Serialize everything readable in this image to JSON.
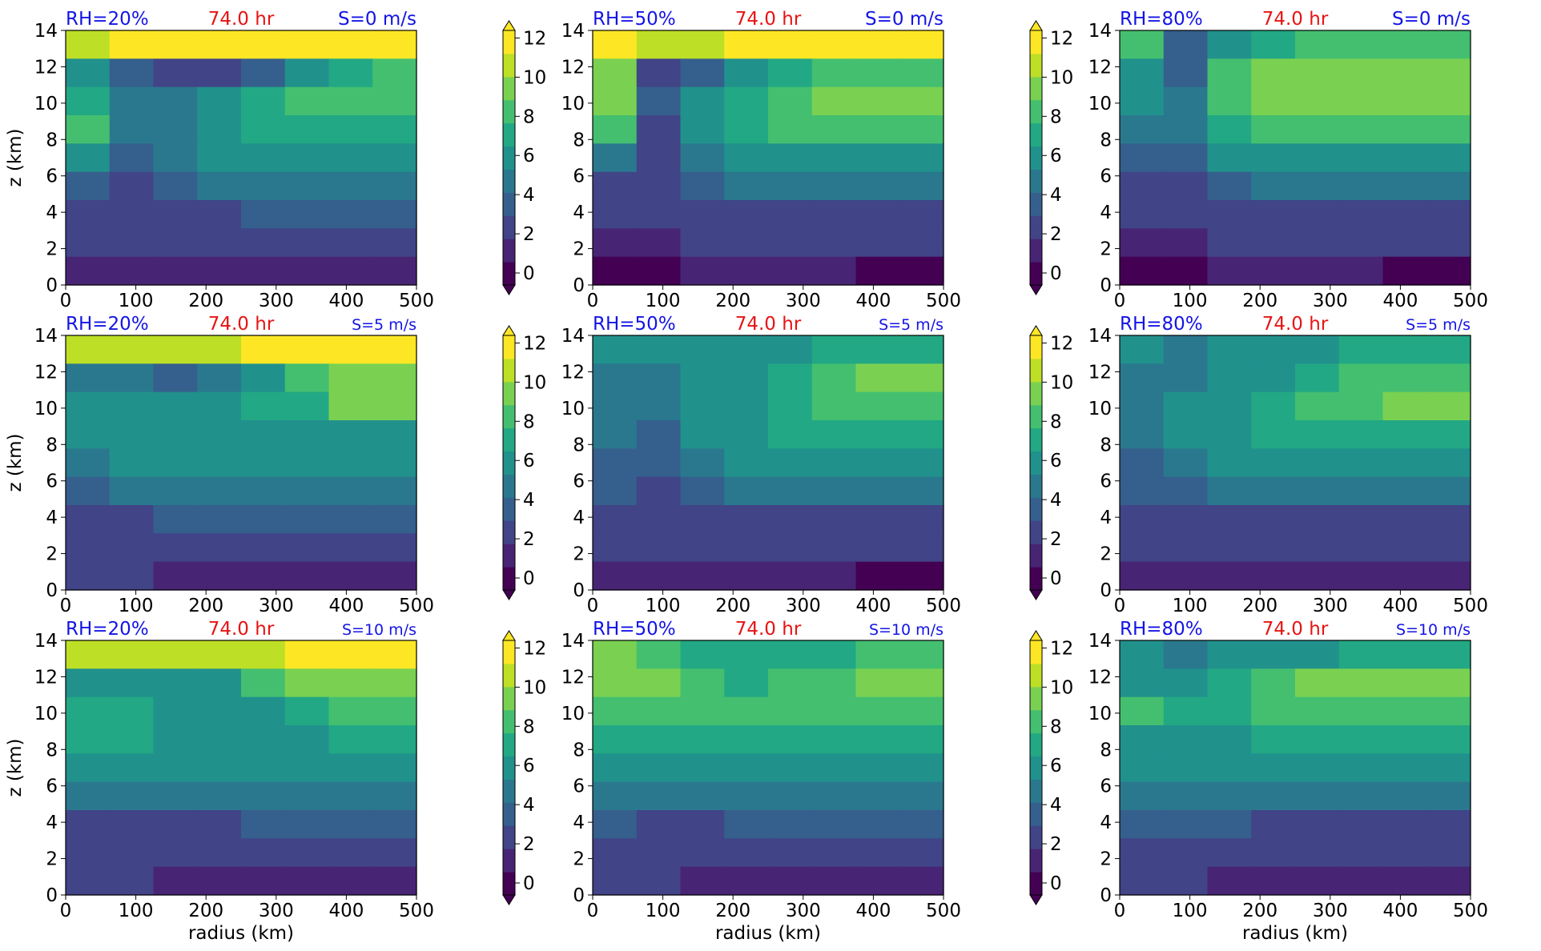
{
  "figure": {
    "xlabel": "radius (km)",
    "ylabel": "z (km)",
    "x_ticks": [
      "0",
      "100",
      "200",
      "300",
      "400",
      "500"
    ],
    "y_ticks": [
      "0",
      "2",
      "4",
      "6",
      "8",
      "10",
      "12",
      "14"
    ],
    "colorbar_ticks": [
      "0",
      "2",
      "4",
      "6",
      "8",
      "10",
      "12"
    ]
  },
  "chart_data": [
    {
      "type": "heatmap",
      "panel": "RH=20% S=0",
      "rh_label": "RH=20%",
      "time_label": "74.0 hr",
      "shear_label": "S=0 m/s",
      "xlim": [
        0,
        500
      ],
      "ylim": [
        0,
        14
      ],
      "clim": [
        0,
        13
      ],
      "values": [
        [
          12,
          13,
          13,
          13,
          13,
          13,
          13,
          13
        ],
        [
          6,
          4,
          3,
          3,
          4,
          6,
          8,
          9
        ],
        [
          8,
          5,
          5,
          7,
          8,
          9,
          9,
          9
        ],
        [
          9,
          5,
          5,
          7,
          8,
          8,
          8,
          8
        ],
        [
          6,
          4,
          5,
          6,
          6,
          7,
          7,
          7
        ],
        [
          4,
          3,
          4,
          5,
          5,
          5,
          5,
          5
        ],
        [
          3,
          3,
          3,
          3,
          4,
          4,
          4,
          4
        ],
        [
          2,
          2,
          2,
          2,
          2,
          2,
          2,
          2
        ],
        [
          1,
          1,
          1,
          1,
          1,
          1,
          1,
          1
        ]
      ]
    },
    {
      "type": "heatmap",
      "panel": "RH=50% S=0",
      "rh_label": "RH=50%",
      "time_label": "74.0 hr",
      "shear_label": "S=0 m/s",
      "xlim": [
        0,
        500
      ],
      "ylim": [
        0,
        14
      ],
      "clim": [
        0,
        13
      ],
      "values": [
        [
          13,
          12,
          12,
          13,
          13,
          13,
          13,
          13
        ],
        [
          10,
          3,
          4,
          6,
          8,
          9,
          9,
          9
        ],
        [
          10,
          4,
          6,
          8,
          9,
          10,
          10,
          10
        ],
        [
          9,
          3,
          6,
          8,
          9,
          9,
          9,
          9
        ],
        [
          5,
          3,
          5,
          7,
          7,
          7,
          7,
          7
        ],
        [
          3,
          3,
          4,
          5,
          5,
          5,
          5,
          5
        ],
        [
          2,
          2,
          3,
          3,
          3,
          3,
          3,
          3
        ],
        [
          1,
          1,
          2,
          2,
          2,
          2,
          2,
          2
        ],
        [
          0,
          0,
          1,
          1,
          1,
          1,
          0,
          0
        ]
      ]
    },
    {
      "type": "heatmap",
      "panel": "RH=80% S=0",
      "rh_label": "RH=80%",
      "time_label": "74.0 hr",
      "shear_label": "S=0 m/s",
      "xlim": [
        0,
        500
      ],
      "ylim": [
        0,
        14
      ],
      "clim": [
        0,
        13
      ],
      "values": [
        [
          9,
          4,
          7,
          8,
          9,
          9,
          9,
          9
        ],
        [
          7,
          4,
          9,
          11,
          11,
          11,
          11,
          11
        ],
        [
          6,
          5,
          9,
          11,
          11,
          11,
          11,
          11
        ],
        [
          5,
          5,
          8,
          9,
          9,
          9,
          9,
          9
        ],
        [
          4,
          4,
          6,
          7,
          7,
          7,
          7,
          7
        ],
        [
          3,
          3,
          4,
          5,
          5,
          5,
          5,
          5
        ],
        [
          2,
          2,
          3,
          3,
          3,
          3,
          3,
          3
        ],
        [
          1,
          1,
          2,
          2,
          2,
          2,
          2,
          2
        ],
        [
          0,
          0,
          1,
          1,
          1,
          1,
          0,
          0
        ]
      ]
    },
    {
      "type": "heatmap",
      "panel": "RH=20% S=5",
      "rh_label": "RH=20%",
      "time_label": "74.0 hr",
      "shear_label": "S=5 m/s",
      "xlim": [
        0,
        500
      ],
      "ylim": [
        0,
        14
      ],
      "clim": [
        0,
        13
      ],
      "values": [
        [
          12,
          12,
          12,
          12,
          13,
          13,
          13,
          13
        ],
        [
          5,
          5,
          4,
          5,
          7,
          9,
          10,
          10
        ],
        [
          6,
          6,
          6,
          7,
          8,
          8,
          10,
          10
        ],
        [
          6,
          7,
          7,
          7,
          7,
          7,
          7,
          7
        ],
        [
          5,
          6,
          6,
          6,
          6,
          6,
          6,
          6
        ],
        [
          4,
          5,
          5,
          5,
          5,
          5,
          5,
          5
        ],
        [
          3,
          3,
          4,
          4,
          4,
          4,
          4,
          4
        ],
        [
          2,
          2,
          2,
          2,
          2,
          2,
          2,
          2
        ],
        [
          2,
          2,
          1,
          1,
          1,
          1,
          1,
          1
        ]
      ]
    },
    {
      "type": "heatmap",
      "panel": "RH=50% S=5",
      "rh_label": "RH=50%",
      "time_label": "74.0 hr",
      "shear_label": "S=5 m/s",
      "xlim": [
        0,
        500
      ],
      "ylim": [
        0,
        14
      ],
      "clim": [
        0,
        13
      ],
      "values": [
        [
          7,
          6,
          6,
          7,
          7,
          8,
          8,
          8
        ],
        [
          5,
          5,
          6,
          7,
          8,
          9,
          10,
          10
        ],
        [
          5,
          5,
          6,
          7,
          8,
          9,
          9,
          9
        ],
        [
          5,
          4,
          6,
          7,
          8,
          8,
          8,
          8
        ],
        [
          4,
          4,
          5,
          6,
          6,
          6,
          6,
          6
        ],
        [
          4,
          3,
          4,
          5,
          5,
          5,
          5,
          5
        ],
        [
          3,
          3,
          3,
          3,
          3,
          3,
          3,
          3
        ],
        [
          2,
          2,
          2,
          2,
          2,
          2,
          2,
          2
        ],
        [
          1,
          1,
          1,
          1,
          1,
          1,
          0,
          0
        ]
      ]
    },
    {
      "type": "heatmap",
      "panel": "RH=80% S=5",
      "rh_label": "RH=80%",
      "time_label": "74.0 hr",
      "shear_label": "S=5 m/s",
      "xlim": [
        0,
        500
      ],
      "ylim": [
        0,
        14
      ],
      "clim": [
        0,
        13
      ],
      "values": [
        [
          6,
          5,
          6,
          7,
          7,
          8,
          8,
          8
        ],
        [
          5,
          5,
          6,
          7,
          8,
          9,
          9,
          9
        ],
        [
          5,
          6,
          7,
          8,
          9,
          9,
          10,
          11
        ],
        [
          5,
          6,
          7,
          8,
          8,
          8,
          8,
          8
        ],
        [
          4,
          5,
          6,
          6,
          6,
          6,
          6,
          6
        ],
        [
          4,
          4,
          5,
          5,
          5,
          5,
          5,
          5
        ],
        [
          3,
          3,
          3,
          3,
          3,
          3,
          3,
          3
        ],
        [
          2,
          2,
          2,
          2,
          2,
          2,
          2,
          2
        ],
        [
          1,
          1,
          1,
          1,
          1,
          1,
          1,
          1
        ]
      ]
    },
    {
      "type": "heatmap",
      "panel": "RH=20% S=10",
      "rh_label": "RH=20%",
      "time_label": "74.0 hr",
      "shear_label": "S=10 m/s",
      "xlim": [
        0,
        500
      ],
      "ylim": [
        0,
        14
      ],
      "clim": [
        0,
        13
      ],
      "values": [
        [
          12,
          12,
          12,
          12,
          12,
          13,
          13,
          13
        ],
        [
          6,
          7,
          7,
          7,
          9,
          10,
          10,
          10
        ],
        [
          8,
          8,
          7,
          6,
          6,
          8,
          9,
          9
        ],
        [
          8,
          8,
          7,
          7,
          7,
          7,
          8,
          8
        ],
        [
          6,
          6,
          6,
          6,
          6,
          6,
          6,
          6
        ],
        [
          5,
          5,
          5,
          5,
          5,
          5,
          5,
          5
        ],
        [
          3,
          3,
          3,
          3,
          4,
          4,
          4,
          4
        ],
        [
          2,
          2,
          2,
          2,
          2,
          2,
          2,
          2
        ],
        [
          2,
          2,
          1,
          1,
          1,
          1,
          1,
          1
        ]
      ]
    },
    {
      "type": "heatmap",
      "panel": "RH=50% S=10",
      "rh_label": "RH=50%",
      "time_label": "74.0 hr",
      "shear_label": "S=10 m/s",
      "xlim": [
        0,
        500
      ],
      "ylim": [
        0,
        14
      ],
      "clim": [
        0,
        13
      ],
      "values": [
        [
          11,
          9,
          8,
          8,
          8,
          8,
          9,
          9
        ],
        [
          10,
          10,
          9,
          8,
          9,
          9,
          10,
          10
        ],
        [
          9,
          9,
          9,
          9,
          9,
          9,
          9,
          9
        ],
        [
          8,
          8,
          8,
          8,
          8,
          8,
          8,
          8
        ],
        [
          6,
          6,
          6,
          6,
          6,
          6,
          6,
          6
        ],
        [
          5,
          5,
          5,
          5,
          5,
          5,
          5,
          5
        ],
        [
          4,
          3,
          3,
          4,
          4,
          4,
          4,
          4
        ],
        [
          3,
          3,
          2,
          3,
          2,
          2,
          2,
          2
        ],
        [
          2,
          2,
          1,
          1,
          1,
          1,
          1,
          1
        ]
      ]
    },
    {
      "type": "heatmap",
      "panel": "RH=80% S=10",
      "rh_label": "RH=80%",
      "time_label": "74.0 hr",
      "shear_label": "S=10 m/s",
      "xlim": [
        0,
        500
      ],
      "ylim": [
        0,
        14
      ],
      "clim": [
        0,
        13
      ],
      "values": [
        [
          7,
          5,
          6,
          7,
          7,
          8,
          8,
          8
        ],
        [
          7,
          7,
          8,
          9,
          10,
          10,
          10,
          10
        ],
        [
          9,
          8,
          8,
          9,
          9,
          9,
          9,
          9
        ],
        [
          7,
          7,
          7,
          8,
          8,
          8,
          8,
          8
        ],
        [
          6,
          6,
          6,
          6,
          6,
          6,
          6,
          6
        ],
        [
          5,
          5,
          5,
          5,
          5,
          5,
          5,
          5
        ],
        [
          4,
          4,
          4,
          3,
          3,
          3,
          3,
          3
        ],
        [
          3,
          3,
          2,
          2,
          2,
          2,
          2,
          2
        ],
        [
          2,
          2,
          1,
          1,
          1,
          1,
          1,
          1
        ]
      ]
    }
  ]
}
